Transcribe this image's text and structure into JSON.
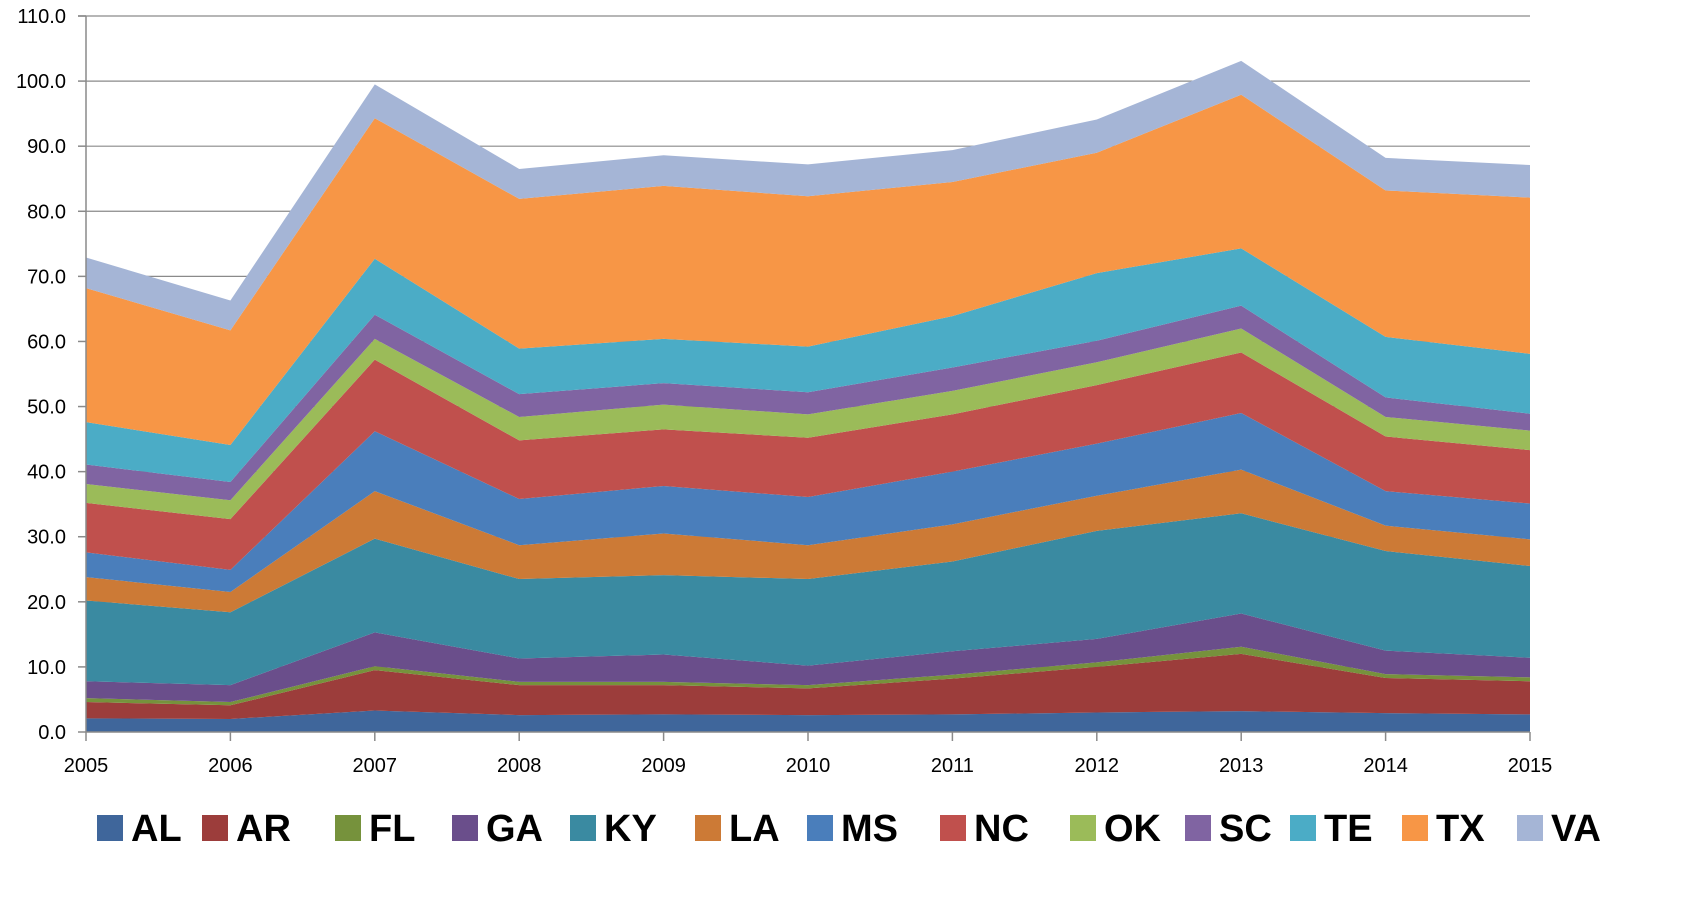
{
  "chart_data": {
    "type": "area",
    "stacked": true,
    "title": "",
    "xlabel": "",
    "ylabel": "",
    "x": [
      "2005",
      "2006",
      "2007",
      "2008",
      "2009",
      "2010",
      "2011",
      "2012",
      "2013",
      "2014",
      "2015"
    ],
    "ylim": [
      0,
      110
    ],
    "y_ticks": [
      "0.0",
      "10.0",
      "20.0",
      "30.0",
      "40.0",
      "50.0",
      "60.0",
      "70.0",
      "80.0",
      "90.0",
      "100.0",
      "110.0"
    ],
    "grid": true,
    "legend_position": "bottom",
    "series": [
      {
        "name": "AL",
        "color": "#3f669b",
        "values": [
          2.1,
          2.0,
          3.3,
          2.6,
          2.7,
          2.6,
          2.7,
          3.0,
          3.2,
          2.9,
          2.7
        ]
      },
      {
        "name": "AR",
        "color": "#9c3d3b",
        "values": [
          2.5,
          2.1,
          6.2,
          4.6,
          4.5,
          4.1,
          5.5,
          7.0,
          8.8,
          5.4,
          5.1
        ]
      },
      {
        "name": "FL",
        "color": "#76923c",
        "values": [
          0.6,
          0.5,
          0.6,
          0.5,
          0.5,
          0.5,
          0.6,
          0.7,
          1.1,
          0.6,
          0.6
        ]
      },
      {
        "name": "GA",
        "color": "#6a4e8b",
        "values": [
          2.6,
          2.6,
          5.2,
          3.6,
          4.2,
          3.0,
          3.6,
          3.6,
          5.1,
          3.6,
          3.0
        ]
      },
      {
        "name": "KY",
        "color": "#3a8aa1",
        "values": [
          12.4,
          11.2,
          14.4,
          12.2,
          12.2,
          13.3,
          13.8,
          16.6,
          15.4,
          15.3,
          14.1
        ]
      },
      {
        "name": "LA",
        "color": "#cc7a36",
        "values": [
          3.6,
          3.1,
          7.3,
          5.2,
          6.4,
          5.2,
          5.7,
          5.4,
          6.7,
          3.9,
          4.1
        ]
      },
      {
        "name": "MS",
        "color": "#4a7ebb",
        "values": [
          3.8,
          3.4,
          9.2,
          7.1,
          7.3,
          7.4,
          8.1,
          8.0,
          8.7,
          5.3,
          5.5
        ]
      },
      {
        "name": "NC",
        "color": "#c0504d",
        "values": [
          7.6,
          7.8,
          11.0,
          9.0,
          8.7,
          9.1,
          8.8,
          9.0,
          9.3,
          8.4,
          8.2
        ]
      },
      {
        "name": "OK",
        "color": "#9bbb59",
        "values": [
          2.9,
          2.9,
          3.2,
          3.6,
          3.8,
          3.6,
          3.6,
          3.5,
          3.7,
          3.0,
          3.0
        ]
      },
      {
        "name": "SC",
        "color": "#8064a2",
        "values": [
          3.0,
          2.8,
          3.7,
          3.5,
          3.3,
          3.4,
          3.6,
          3.3,
          3.5,
          3.0,
          2.6
        ]
      },
      {
        "name": "TE",
        "color": "#4bacc6",
        "values": [
          6.5,
          5.7,
          8.6,
          7.0,
          6.8,
          7.0,
          7.9,
          10.4,
          8.8,
          9.3,
          9.2
        ]
      },
      {
        "name": "TX",
        "color": "#f79646",
        "values": [
          20.6,
          17.6,
          21.6,
          23.0,
          23.5,
          23.1,
          20.6,
          18.5,
          23.6,
          22.5,
          24.0
        ]
      },
      {
        "name": "VA",
        "color": "#a5b5d6",
        "values": [
          4.7,
          4.6,
          5.2,
          4.6,
          4.7,
          4.9,
          4.9,
          5.1,
          5.2,
          5.0,
          5.0
        ]
      }
    ]
  }
}
